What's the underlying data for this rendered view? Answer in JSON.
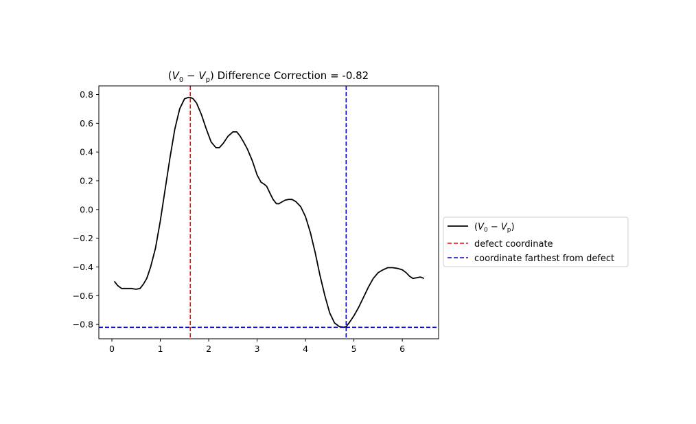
{
  "chart_data": {
    "type": "line",
    "title_parts": {
      "open": "(",
      "v0": "V",
      "v0_sub": "0",
      "minus": " − ",
      "vp": "V",
      "vp_sub": "p",
      "close": ") ",
      "rest": "Difference Correction = -0.82"
    },
    "xlim": [
      -0.27,
      6.75
    ],
    "ylim": [
      -0.9,
      0.86
    ],
    "xticks": [
      0,
      1,
      2,
      3,
      4,
      5,
      6
    ],
    "xtick_labels": [
      "0",
      "1",
      "2",
      "3",
      "4",
      "5",
      "6"
    ],
    "yticks": [
      0.8,
      0.6,
      0.4,
      0.2,
      0.0,
      -0.2,
      -0.4,
      -0.6,
      -0.8
    ],
    "ytick_labels": [
      "0.8",
      "0.6",
      "0.4",
      "0.2",
      "0.0",
      "−0.2",
      "−0.4",
      "−0.6",
      "−0.8"
    ],
    "series": [
      {
        "color": "#000000",
        "style": "solid",
        "x": [
          0.05,
          0.12,
          0.2,
          0.3,
          0.4,
          0.5,
          0.58,
          0.65,
          0.72,
          0.8,
          0.9,
          1.0,
          1.1,
          1.2,
          1.3,
          1.4,
          1.5,
          1.58,
          1.62,
          1.68,
          1.75,
          1.85,
          1.95,
          2.05,
          2.15,
          2.22,
          2.3,
          2.4,
          2.5,
          2.58,
          2.65,
          2.72,
          2.8,
          2.9,
          3.0,
          3.08,
          3.15,
          3.2,
          3.27,
          3.33,
          3.4,
          3.45,
          3.5,
          3.58,
          3.65,
          3.72,
          3.8,
          3.9,
          4.0,
          4.1,
          4.2,
          4.3,
          4.4,
          4.5,
          4.6,
          4.7,
          4.8,
          4.84,
          4.9,
          5.0,
          5.1,
          5.2,
          5.3,
          5.4,
          5.5,
          5.6,
          5.7,
          5.8,
          5.9,
          6.0,
          6.08,
          6.15,
          6.22,
          6.3,
          6.37,
          6.45
        ],
        "y": [
          -0.5,
          -0.53,
          -0.55,
          -0.55,
          -0.55,
          -0.555,
          -0.55,
          -0.52,
          -0.48,
          -0.4,
          -0.27,
          -0.08,
          0.14,
          0.36,
          0.56,
          0.7,
          0.77,
          0.78,
          0.78,
          0.77,
          0.74,
          0.66,
          0.56,
          0.47,
          0.43,
          0.43,
          0.46,
          0.51,
          0.54,
          0.54,
          0.51,
          0.47,
          0.42,
          0.34,
          0.24,
          0.19,
          0.175,
          0.16,
          0.11,
          0.07,
          0.04,
          0.04,
          0.05,
          0.065,
          0.07,
          0.07,
          0.055,
          0.02,
          -0.05,
          -0.16,
          -0.3,
          -0.46,
          -0.6,
          -0.72,
          -0.79,
          -0.815,
          -0.82,
          -0.815,
          -0.79,
          -0.74,
          -0.68,
          -0.61,
          -0.54,
          -0.48,
          -0.44,
          -0.42,
          -0.405,
          -0.405,
          -0.41,
          -0.42,
          -0.44,
          -0.465,
          -0.48,
          -0.475,
          -0.47,
          -0.48
        ]
      }
    ],
    "vlines": [
      {
        "x": 1.62,
        "color": "#ff0000",
        "style": "dashed"
      },
      {
        "x": 4.84,
        "color": "#0000cc",
        "style": "dashed"
      }
    ],
    "hlines": [
      {
        "y": -0.82,
        "color": "#0000cc",
        "style": "dashed"
      }
    ],
    "legend": {
      "placement": "outside-right",
      "entries": [
        {
          "parts": {
            "open": "(",
            "v0": "V",
            "v0_sub": "0",
            "minus": " − ",
            "vp": "V",
            "vp_sub": "p",
            "close": ")"
          },
          "color": "#000000",
          "style": "solid"
        },
        {
          "label": "defect coordinate",
          "color": "#ff0000",
          "style": "dashed"
        },
        {
          "label": "coordinate farthest from defect",
          "color": "#0000cc",
          "style": "dashed"
        }
      ]
    }
  }
}
